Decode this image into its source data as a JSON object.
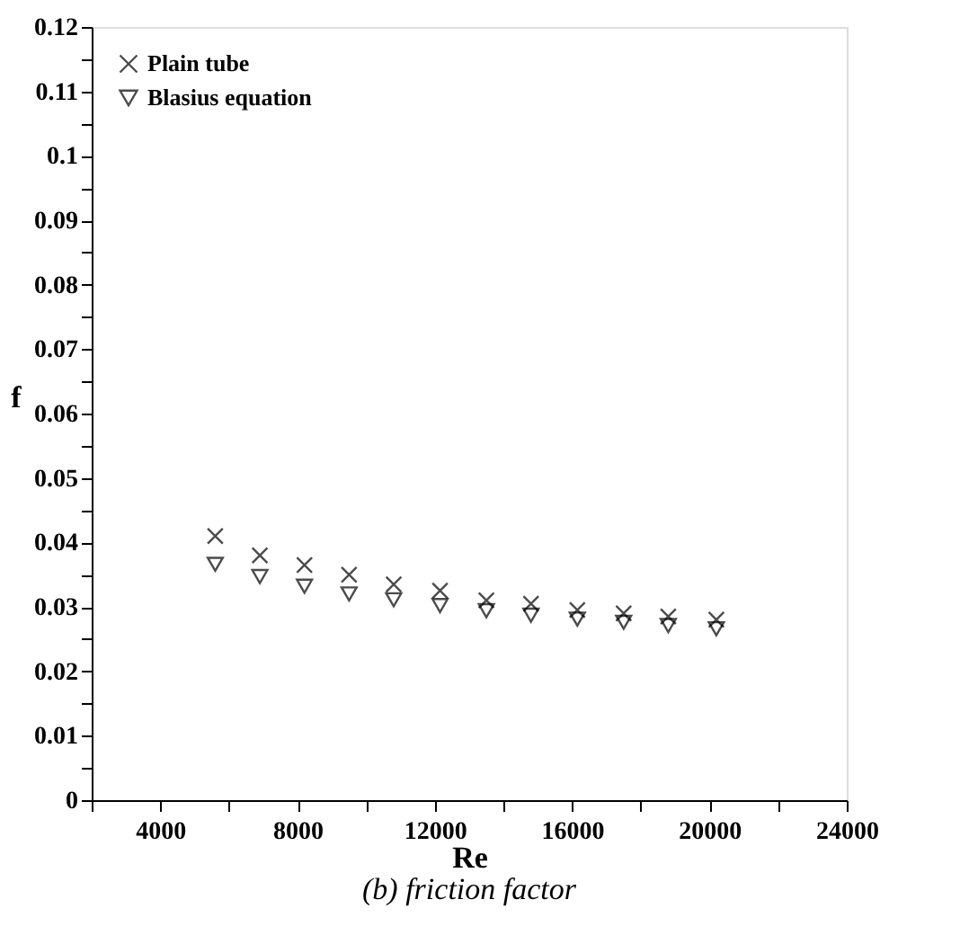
{
  "chart_data": {
    "type": "scatter",
    "x": [
      5600,
      6900,
      8200,
      9500,
      10800,
      12150,
      13500,
      14800,
      16150,
      17500,
      18800,
      20200
    ],
    "series": [
      {
        "name": "Plain tube",
        "color": "#000000",
        "marker": "cross",
        "values": [
          0.041,
          0.038,
          0.0365,
          0.035,
          0.0335,
          0.0325,
          0.031,
          0.0305,
          0.0295,
          0.029,
          0.0285,
          0.028
        ]
      },
      {
        "name": "Blasius equation",
        "color": "#000000",
        "marker": "triangle",
        "values": [
          0.0366,
          0.0347,
          0.0332,
          0.032,
          0.0311,
          0.0302,
          0.0294,
          0.0287,
          0.0281,
          0.0276,
          0.0271,
          0.0266
        ]
      }
    ],
    "xlabel": "Re",
    "ylabel": "f",
    "subtitle": "(b)  friction factor",
    "xlim": [
      2000,
      24000
    ],
    "xticks": [
      {
        "value": 2000,
        "label": null
      },
      4000,
      {
        "value": 6000,
        "label": null
      },
      8000,
      {
        "value": 10000,
        "label": null
      },
      12000,
      {
        "value": 14000,
        "label": null
      },
      16000,
      {
        "value": 18000,
        "label": null
      },
      20000,
      {
        "value": 22000,
        "label": null
      },
      24000
    ],
    "ylim": [
      0,
      0.12
    ],
    "yticks": [
      0,
      {
        "value": 0.005,
        "label": null
      },
      0.01,
      {
        "value": 0.015,
        "label": null
      },
      0.02,
      {
        "value": 0.025,
        "label": null
      },
      0.03,
      {
        "value": 0.035,
        "label": null
      },
      0.04,
      {
        "value": 0.045,
        "label": null
      },
      0.05,
      {
        "value": 0.055,
        "label": null
      },
      0.06,
      {
        "value": 0.065,
        "label": null
      },
      0.07,
      {
        "value": 0.075,
        "label": null
      },
      0.08,
      {
        "value": 0.085,
        "label": null
      },
      0.09,
      {
        "value": 0.095,
        "label": null
      },
      0.1,
      {
        "value": 0.105,
        "label": null
      },
      0.11,
      {
        "value": 0.115,
        "label": null
      },
      0.12
    ],
    "grid": false,
    "legend": "top left"
  }
}
